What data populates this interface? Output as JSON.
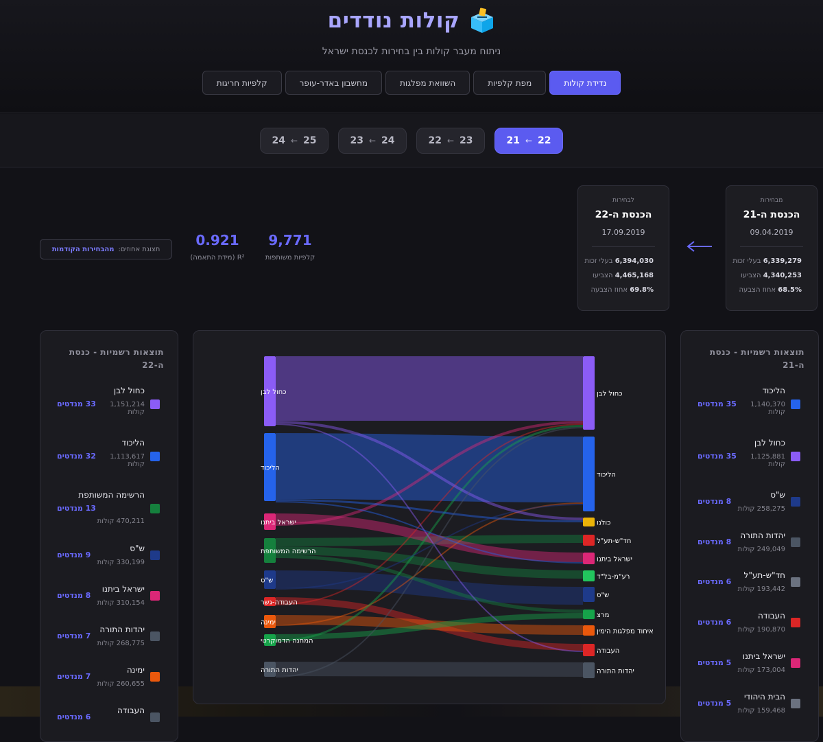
{
  "header": {
    "title": "קולות נודדים",
    "subtitle": "ניתוח מעבר קולות בין בחירות לכנסת ישראל"
  },
  "nav": [
    {
      "label": "נדידת קולות",
      "active": true
    },
    {
      "label": "מפת קלפיות",
      "active": false
    },
    {
      "label": "השוואת מפלגות",
      "active": false
    },
    {
      "label": "מחשבון באדר-עופר",
      "active": false
    },
    {
      "label": "קלפיות חריגות",
      "active": false
    }
  ],
  "periods": [
    {
      "from": "21",
      "to": "22",
      "active": true
    },
    {
      "from": "22",
      "to": "23",
      "active": false
    },
    {
      "from": "23",
      "to": "24",
      "active": false
    },
    {
      "from": "24",
      "to": "25",
      "active": false
    }
  ],
  "period_arrow": "←",
  "cards": {
    "from": {
      "label": "מבחירות",
      "knesset": "הכנסת ה-21",
      "date": "09.04.2019",
      "eligible": "6,339,279",
      "eligible_label": "בעלי זכות",
      "voted": "4,340,253",
      "voted_label": "הצביעו",
      "turnout": "68.5%",
      "turnout_label": "אחוז הצבעה"
    },
    "to": {
      "label": "לבחירות",
      "knesset": "הכנסת ה-22",
      "date": "17.09.2019",
      "eligible": "6,394,030",
      "eligible_label": "בעלי זכות",
      "voted": "4,465,168",
      "voted_label": "הצביעו",
      "turnout": "69.8%",
      "turnout_label": "אחוז הצבעה"
    }
  },
  "summary": {
    "shared_value": "9,771",
    "shared_label": "קלפיות משותפות",
    "r2_value": "0.921",
    "r2_label": "R² (מידת התאמה)",
    "view_label": "תצוגת אחוזים:",
    "view_option": "מהבחירות הקודמות"
  },
  "colors": {
    "accent": "#5b5bf0",
    "purple": "#8b5cf6",
    "blue": "#2563eb",
    "green": "#15803d",
    "navy": "#1e3a8a",
    "pink": "#db2777",
    "gray": "#4b5563",
    "orange": "#ea580c",
    "red": "#dc2626",
    "yellow": "#eab308",
    "lime": "#22c55e"
  },
  "left_panel": {
    "title": "תוצאות רשמיות - כנסת ה-22",
    "items": [
      {
        "name": "כחול לבן",
        "votes": "1,151,214",
        "votes_unit": "קולות",
        "seats": "33 מנדטים",
        "color": "#8b5cf6"
      },
      {
        "name": "הליכוד",
        "votes": "1,113,617",
        "votes_unit": "קולות",
        "seats": "32 מנדטים",
        "color": "#2563eb"
      },
      {
        "name": "הרשימה המשותפת",
        "votes": "470,211",
        "votes_unit": "קולות",
        "seats": "13 מנדטים",
        "color": "#15803d"
      },
      {
        "name": "ש\"ס",
        "votes": "330,199",
        "votes_unit": "קולות",
        "seats": "9 מנדטים",
        "color": "#1e3a8a"
      },
      {
        "name": "ישראל ביתנו",
        "votes": "310,154",
        "votes_unit": "קולות",
        "seats": "8 מנדטים",
        "color": "#db2777"
      },
      {
        "name": "יהדות התורה",
        "votes": "268,775",
        "votes_unit": "קולות",
        "seats": "7 מנדטים",
        "color": "#4b5563"
      },
      {
        "name": "ימינה",
        "votes": "260,655",
        "votes_unit": "קולות",
        "seats": "7 מנדטים",
        "color": "#ea580c"
      },
      {
        "name": "העבודה",
        "votes": "",
        "votes_unit": "",
        "seats": "6 מנדטים",
        "color": "#4b5563"
      }
    ]
  },
  "right_panel": {
    "title": "תוצאות רשמיות - כנסת ה-21",
    "items": [
      {
        "name": "הליכוד",
        "votes": "1,140,370",
        "votes_unit": "קולות",
        "seats": "35 מנדטים",
        "color": "#2563eb"
      },
      {
        "name": "כחול לבן",
        "votes": "1,125,881",
        "votes_unit": "קולות",
        "seats": "35 מנדטים",
        "color": "#8b5cf6"
      },
      {
        "name": "ש\"ס",
        "votes": "258,275",
        "votes_unit": "קולות",
        "seats": "8 מנדטים",
        "color": "#1e3a8a"
      },
      {
        "name": "יהדות התורה",
        "votes": "249,049",
        "votes_unit": "קולות",
        "seats": "8 מנדטים",
        "color": "#4b5563"
      },
      {
        "name": "חד\"ש-תע\"ל",
        "votes": "193,442",
        "votes_unit": "קולות",
        "seats": "6 מנדטים",
        "color": "#6b7280"
      },
      {
        "name": "העבודה",
        "votes": "190,870",
        "votes_unit": "קולות",
        "seats": "6 מנדטים",
        "color": "#dc2626"
      },
      {
        "name": "ישראל ביתנו",
        "votes": "173,004",
        "votes_unit": "קולות",
        "seats": "5 מנדטים",
        "color": "#db2777"
      },
      {
        "name": "הבית היהודי",
        "votes": "159,468",
        "votes_unit": "קולות",
        "seats": "5 מנדטים",
        "color": "#6b7280"
      }
    ]
  },
  "sankey": {
    "left_nodes": [
      {
        "name": "כחול לבן",
        "color": "#8b5cf6"
      },
      {
        "name": "הליכוד",
        "color": "#2563eb"
      },
      {
        "name": "ישראל ביתנו",
        "color": "#db2777"
      },
      {
        "name": "הרשימה המשותפת",
        "color": "#15803d"
      },
      {
        "name": "ש\"ס",
        "color": "#1e3a8a"
      },
      {
        "name": "העבודה-גשר",
        "color": "#dc2626"
      },
      {
        "name": "ימינה",
        "color": "#ea580c"
      },
      {
        "name": "המחנה הדמוקרטי",
        "color": "#16a34a"
      },
      {
        "name": "יהדות התורה",
        "color": "#4b5563"
      }
    ],
    "right_nodes": [
      {
        "name": "כחול לבן",
        "color": "#8b5cf6"
      },
      {
        "name": "הליכוד",
        "color": "#2563eb"
      },
      {
        "name": "כולנו",
        "color": "#eab308"
      },
      {
        "name": "חד\"ש-תע\"ל",
        "color": "#dc2626"
      },
      {
        "name": "ישראל ביתנו",
        "color": "#db2777"
      },
      {
        "name": "רע\"מ-בל\"ד",
        "color": "#22c55e"
      },
      {
        "name": "ש\"ס",
        "color": "#1e3a8a"
      },
      {
        "name": "מרצ",
        "color": "#16a34a"
      },
      {
        "name": "איחוד מפלגות הימין",
        "color": "#ea580c"
      },
      {
        "name": "העבודה",
        "color": "#dc2626"
      },
      {
        "name": "יהדות התורה",
        "color": "#4b5563"
      }
    ]
  }
}
